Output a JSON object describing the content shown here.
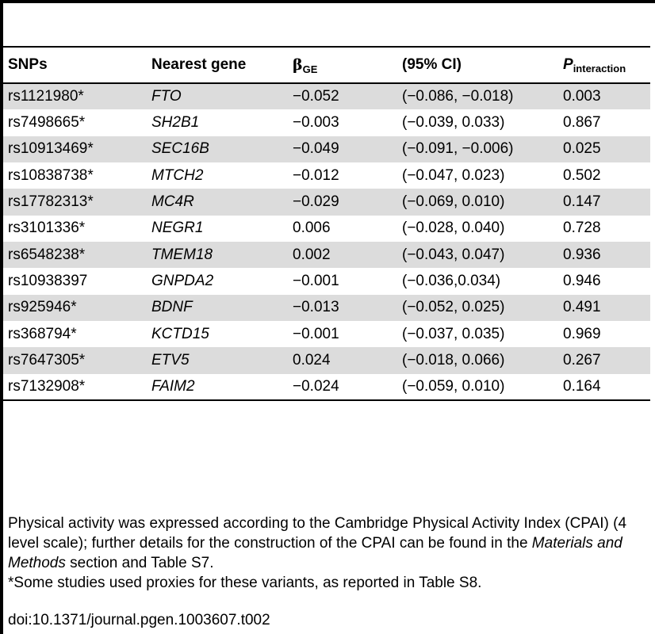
{
  "table": {
    "headers": {
      "snps": "SNPs",
      "nearest_gene": "Nearest gene",
      "beta_symbol": "β",
      "beta_sub": "GE",
      "ci": "(95% CI)",
      "p_symbol": "P",
      "p_sub": "interaction"
    },
    "rows": [
      {
        "snp": "rs1121980*",
        "gene": "FTO",
        "beta": "−0.052",
        "ci": "(−0.086, −0.018)",
        "p": "0.003",
        "shaded": true
      },
      {
        "snp": "rs7498665*",
        "gene": "SH2B1",
        "beta": "−0.003",
        "ci": "(−0.039, 0.033)",
        "p": "0.867",
        "shaded": false
      },
      {
        "snp": "rs10913469*",
        "gene": "SEC16B",
        "beta": "−0.049",
        "ci": "(−0.091, −0.006)",
        "p": "0.025",
        "shaded": true
      },
      {
        "snp": "rs10838738*",
        "gene": "MTCH2",
        "beta": "−0.012",
        "ci": "(−0.047, 0.023)",
        "p": "0.502",
        "shaded": false
      },
      {
        "snp": "rs17782313*",
        "gene": "MC4R",
        "beta": "−0.029",
        "ci": "(−0.069, 0.010)",
        "p": "0.147",
        "shaded": true
      },
      {
        "snp": "rs3101336*",
        "gene": "NEGR1",
        "beta": "0.006",
        "ci": "(−0.028, 0.040)",
        "p": "0.728",
        "shaded": false
      },
      {
        "snp": "rs6548238*",
        "gene": "TMEM18",
        "beta": "0.002",
        "ci": "(−0.043, 0.047)",
        "p": "0.936",
        "shaded": true
      },
      {
        "snp": "rs10938397",
        "gene": "GNPDA2",
        "beta": "−0.001",
        "ci": "(−0.036,0.034)",
        "p": "0.946",
        "shaded": false
      },
      {
        "snp": "rs925946*",
        "gene": "BDNF",
        "beta": "−0.013",
        "ci": "(−0.052, 0.025)",
        "p": "0.491",
        "shaded": true
      },
      {
        "snp": "rs368794*",
        "gene": "KCTD15",
        "beta": "−0.001",
        "ci": "(−0.037, 0.035)",
        "p": "0.969",
        "shaded": false
      },
      {
        "snp": "rs7647305*",
        "gene": "ETV5",
        "beta": "0.024",
        "ci": "(−0.018, 0.066)",
        "p": "0.267",
        "shaded": true
      },
      {
        "snp": "rs7132908*",
        "gene": "FAIM2",
        "beta": "−0.024",
        "ci": "(−0.059, 0.010)",
        "p": "0.164",
        "shaded": false
      }
    ]
  },
  "footnote": {
    "line1_before": "Physical activity was expressed according to the Cambridge Physical Activity Index (CPAI) (4 level scale); further details for the construction of the CPAI can be found in the ",
    "line1_italic": "Materials and Methods",
    "line1_after": " section and Table S7.",
    "line2": "*Some studies used proxies for these variants, as reported in Table S8.",
    "doi": "doi:10.1371/journal.pgen.1003607.t002"
  },
  "colors": {
    "shaded_row": "#dcdcdc",
    "rule": "#000000"
  }
}
